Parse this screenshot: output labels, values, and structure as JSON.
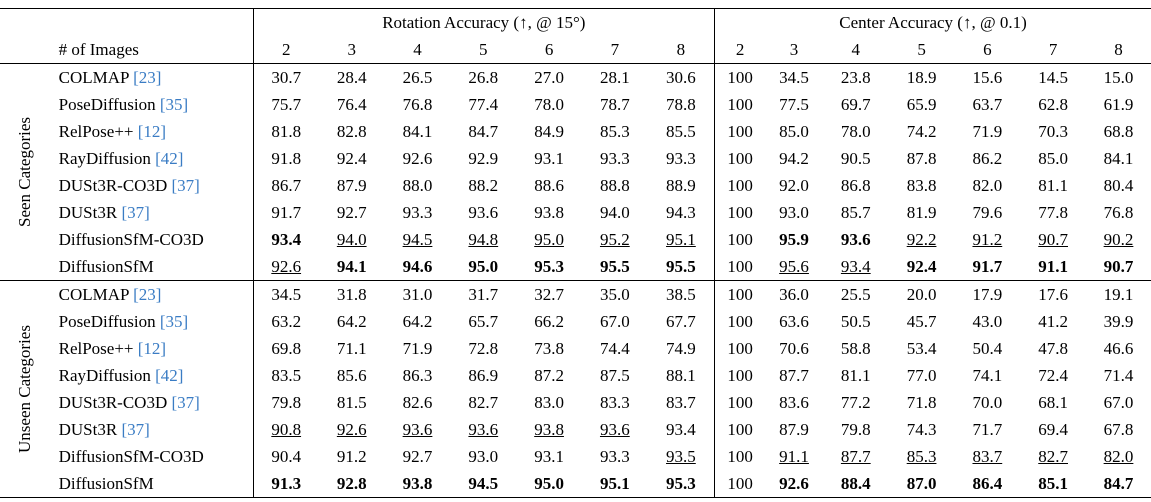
{
  "table": {
    "header": {
      "rotation": "Rotation Accuracy (↑, @ 15°)",
      "center": "Center Accuracy (↑, @ 0.1)",
      "images": "# of Images",
      "counts": [
        2,
        3,
        4,
        5,
        6,
        7,
        8
      ]
    },
    "sections": [
      {
        "label": "Seen Categories",
        "rows": [
          {
            "name": "COLMAP",
            "cite": "[23]",
            "values": [
              "30.7",
              "28.4",
              "26.5",
              "26.8",
              "27.0",
              "28.1",
              "30.6",
              "100",
              "34.5",
              "23.8",
              "18.9",
              "15.6",
              "14.5",
              "15.0"
            ]
          },
          {
            "name": "PoseDiffusion",
            "cite": "[35]",
            "values": [
              "75.7",
              "76.4",
              "76.8",
              "77.4",
              "78.0",
              "78.7",
              "78.8",
              "100",
              "77.5",
              "69.7",
              "65.9",
              "63.7",
              "62.8",
              "61.9"
            ]
          },
          {
            "name": "RelPose++",
            "cite": "[12]",
            "values": [
              "81.8",
              "82.8",
              "84.1",
              "84.7",
              "84.9",
              "85.3",
              "85.5",
              "100",
              "85.0",
              "78.0",
              "74.2",
              "71.9",
              "70.3",
              "68.8"
            ]
          },
          {
            "name": "RayDiffusion",
            "cite": "[42]",
            "values": [
              "91.8",
              "92.4",
              "92.6",
              "92.9",
              "93.1",
              "93.3",
              "93.3",
              "100",
              "94.2",
              "90.5",
              "87.8",
              "86.2",
              "85.0",
              "84.1"
            ]
          },
          {
            "name": "DUSt3R-CO3D",
            "cite": "[37]",
            "values": [
              "86.7",
              "87.9",
              "88.0",
              "88.2",
              "88.6",
              "88.8",
              "88.9",
              "100",
              "92.0",
              "86.8",
              "83.8",
              "82.0",
              "81.1",
              "80.4"
            ]
          },
          {
            "name": "DUSt3R",
            "cite": "[37]",
            "values": [
              "91.7",
              "92.7",
              "93.3",
              "93.6",
              "93.8",
              "94.0",
              "94.3",
              "100",
              "93.0",
              "85.7",
              "81.9",
              "79.6",
              "77.8",
              "76.8"
            ]
          },
          {
            "name": "DiffusionSfM-CO3D",
            "values": [
              "93.4",
              "94.0",
              "94.5",
              "94.8",
              "95.0",
              "95.2",
              "95.1",
              "100",
              "95.9",
              "93.6",
              "92.2",
              "91.2",
              "90.7",
              "90.2"
            ],
            "bold": [
              0,
              8,
              9
            ],
            "underline": [
              1,
              2,
              3,
              4,
              5,
              6,
              10,
              11,
              12,
              13
            ]
          },
          {
            "name": "DiffusionSfM",
            "values": [
              "92.6",
              "94.1",
              "94.6",
              "95.0",
              "95.3",
              "95.5",
              "95.5",
              "100",
              "95.6",
              "93.4",
              "92.4",
              "91.7",
              "91.1",
              "90.7"
            ],
            "bold": [
              1,
              2,
              3,
              4,
              5,
              6,
              10,
              11,
              12,
              13
            ],
            "underline": [
              0,
              8,
              9
            ]
          }
        ]
      },
      {
        "label": "Unseen Categories",
        "rows": [
          {
            "name": "COLMAP",
            "cite": "[23]",
            "values": [
              "34.5",
              "31.8",
              "31.0",
              "31.7",
              "32.7",
              "35.0",
              "38.5",
              "100",
              "36.0",
              "25.5",
              "20.0",
              "17.9",
              "17.6",
              "19.1"
            ]
          },
          {
            "name": "PoseDiffusion",
            "cite": "[35]",
            "values": [
              "63.2",
              "64.2",
              "64.2",
              "65.7",
              "66.2",
              "67.0",
              "67.7",
              "100",
              "63.6",
              "50.5",
              "45.7",
              "43.0",
              "41.2",
              "39.9"
            ]
          },
          {
            "name": "RelPose++",
            "cite": "[12]",
            "values": [
              "69.8",
              "71.1",
              "71.9",
              "72.8",
              "73.8",
              "74.4",
              "74.9",
              "100",
              "70.6",
              "58.8",
              "53.4",
              "50.4",
              "47.8",
              "46.6"
            ]
          },
          {
            "name": "RayDiffusion",
            "cite": "[42]",
            "values": [
              "83.5",
              "85.6",
              "86.3",
              "86.9",
              "87.2",
              "87.5",
              "88.1",
              "100",
              "87.7",
              "81.1",
              "77.0",
              "74.1",
              "72.4",
              "71.4"
            ]
          },
          {
            "name": "DUSt3R-CO3D",
            "cite": "[37]",
            "values": [
              "79.8",
              "81.5",
              "82.6",
              "82.7",
              "83.0",
              "83.3",
              "83.7",
              "100",
              "83.6",
              "77.2",
              "71.8",
              "70.0",
              "68.1",
              "67.0"
            ]
          },
          {
            "name": "DUSt3R",
            "cite": "[37]",
            "values": [
              "90.8",
              "92.6",
              "93.6",
              "93.6",
              "93.8",
              "93.6",
              "93.4",
              "100",
              "87.9",
              "79.8",
              "74.3",
              "71.7",
              "69.4",
              "67.8"
            ],
            "underline": [
              0,
              1,
              2,
              3,
              4,
              5
            ]
          },
          {
            "name": "DiffusionSfM-CO3D",
            "values": [
              "90.4",
              "91.2",
              "92.7",
              "93.0",
              "93.1",
              "93.3",
              "93.5",
              "100",
              "91.1",
              "87.7",
              "85.3",
              "83.7",
              "82.7",
              "82.0"
            ],
            "underline": [
              6,
              8,
              9,
              10,
              11,
              12,
              13
            ]
          },
          {
            "name": "DiffusionSfM",
            "values": [
              "91.3",
              "92.8",
              "93.8",
              "94.5",
              "95.0",
              "95.1",
              "95.3",
              "100",
              "92.6",
              "88.4",
              "87.0",
              "86.4",
              "85.1",
              "84.7"
            ],
            "bold": [
              0,
              1,
              2,
              3,
              4,
              5,
              6,
              8,
              9,
              10,
              11,
              12,
              13
            ]
          }
        ]
      }
    ]
  }
}
